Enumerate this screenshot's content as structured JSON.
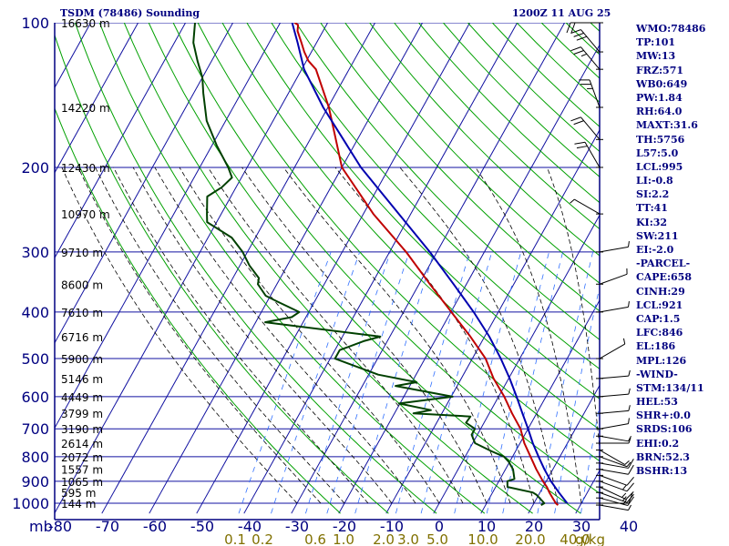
{
  "header": {
    "title": "TSDM (78486) Sounding",
    "datetime": "1200Z 11 AUG 25"
  },
  "indices": [
    "WMO:78486",
    "TP:101",
    "MW:13",
    "FRZ:571",
    "WB0:649",
    "PW:1.84",
    "RH:64.0",
    "MAXT:31.6",
    "TH:5756",
    "L57:5.0",
    "LCL:995",
    "LI:-0.8",
    "SI:2.2",
    "TT:41",
    "KI:32",
    "SW:211",
    "EI:-2.0",
    "-PARCEL-",
    "CAPE:658",
    "CINH:29",
    "LCL:921",
    "CAP:1.5",
    "LFC:846",
    "EL:186",
    "MPL:126",
    "-WIND-",
    "STM:134/11",
    "HEL:53",
    "SHR+:0.0",
    "SRDS:106",
    "EHI:0.2",
    "BRN:52.3",
    "BSHR:13"
  ],
  "colors": {
    "frame": "#000080",
    "isobar": "#1010a0",
    "isotherm": "#1010a0",
    "dry_adiabat": "#00a000",
    "moist_adiabat": "#000000",
    "mixing_ratio": "#3070ff",
    "temperature": "#c00000",
    "dewpoint": "#004000",
    "parcel": "#0000b0",
    "mixing_label": "#807000"
  },
  "chart_data": {
    "type": "line",
    "title": "TSDM (78486) Sounding",
    "subtitle": "1200Z 11 AUG 25",
    "xlabel": "",
    "ylabel": "mb",
    "x_ticks": [
      -80,
      -70,
      -60,
      -50,
      -40,
      -30,
      -20,
      -10,
      0,
      10,
      20,
      30,
      40
    ],
    "y_ticks": [
      100,
      200,
      300,
      400,
      500,
      600,
      700,
      800,
      900,
      1000
    ],
    "ylim": [
      1000,
      100
    ],
    "y_scale": "log",
    "grid": true,
    "height_labels": [
      {
        "p": 100,
        "label": "16630 m"
      },
      {
        "p": 150,
        "label": "14220 m"
      },
      {
        "p": 200,
        "label": "12430 m"
      },
      {
        "p": 250,
        "label": "10970 m"
      },
      {
        "p": 300,
        "label": "9710 m"
      },
      {
        "p": 350,
        "label": "8600 m"
      },
      {
        "p": 400,
        "label": "7610 m"
      },
      {
        "p": 450,
        "label": "6716 m"
      },
      {
        "p": 500,
        "label": "5900 m"
      },
      {
        "p": 550,
        "label": "5146 m"
      },
      {
        "p": 600,
        "label": "4449 m"
      },
      {
        "p": 650,
        "label": "3799 m"
      },
      {
        "p": 700,
        "label": "3190 m"
      },
      {
        "p": 750,
        "label": "2614 m"
      },
      {
        "p": 800,
        "label": "2072 m"
      },
      {
        "p": 850,
        "label": "1557 m"
      },
      {
        "p": 900,
        "label": "1065 m"
      },
      {
        "p": 950,
        "label": "595 m"
      },
      {
        "p": 1000,
        "label": "144 m"
      }
    ],
    "mixing_ratio_labels": [
      "0.1",
      "0.2",
      "0.6",
      "1.0",
      "2.0",
      "3.0",
      "5.0",
      "10.0",
      "20.0",
      "40.0"
    ],
    "mixing_ratio_unit": "g/kg",
    "series": [
      {
        "key": "temperature",
        "pressure": [
          1009,
          1000,
          950,
          925,
          900,
          850,
          800,
          750,
          700,
          650,
          600,
          550,
          500,
          450,
          400,
          350,
          300,
          250,
          200,
          150,
          125,
          120,
          115,
          110,
          104,
          101,
          100
        ],
        "values": [
          25.3,
          24.6,
          22.0,
          20.8,
          19.3,
          16.5,
          13.8,
          10.9,
          8.4,
          4.8,
          1.2,
          -3.2,
          -7.2,
          -13.0,
          -19.9,
          -27.7,
          -36.5,
          -47.9,
          -60.0,
          -69.8,
          -77.0,
          -79.6,
          -81.5,
          -83.2,
          -85.4,
          -86.0,
          -87.0
        ]
      },
      {
        "key": "dewpoint",
        "pressure": [
          1009,
          1000,
          960,
          950,
          925,
          900,
          890,
          850,
          820,
          800,
          780,
          750,
          720,
          700,
          680,
          660,
          650,
          640,
          620,
          600,
          570,
          560,
          540,
          500,
          480,
          460,
          450,
          420,
          410,
          400,
          380,
          370,
          350,
          340,
          320,
          300,
          280,
          260,
          250,
          230,
          220,
          210,
          200,
          180,
          160,
          140,
          130,
          120,
          110,
          100
        ],
        "values": [
          21.7,
          22.2,
          19.5,
          18.5,
          12.5,
          11.8,
          13.0,
          11.6,
          9.8,
          8.2,
          5.0,
          0.5,
          -1.2,
          -1.2,
          -3.8,
          -3.6,
          -16.0,
          -12.7,
          -20.2,
          -9.7,
          -23.0,
          -19.0,
          -28.0,
          -39.0,
          -39.0,
          -35.0,
          -32.0,
          -58.0,
          -53.0,
          -52.0,
          -58.0,
          -61.0,
          -64.0,
          -64.5,
          -68.0,
          -71.0,
          -75.0,
          -82.0,
          -83.0,
          -85.0,
          -83.0,
          -82.0,
          -84.0,
          -89.0,
          -94.0,
          -98.0,
          -100.0,
          -103.0,
          -106.0,
          -108.0
        ]
      },
      {
        "key": "parcel",
        "pressure": [
          1000,
          950,
          900,
          850,
          800,
          750,
          700,
          650,
          600,
          550,
          500,
          450,
          400,
          350,
          300,
          250,
          200,
          150,
          125,
          110,
          100
        ],
        "values": [
          27.0,
          24.0,
          21.0,
          18.2,
          15.5,
          12.7,
          10.0,
          7.0,
          3.8,
          0.2,
          -4.0,
          -9.0,
          -15.2,
          -22.7,
          -31.5,
          -42.5,
          -56.0,
          -71.0,
          -79.5,
          -84.0,
          -87.5
        ]
      }
    ]
  },
  "wind_barbs": [
    {
      "p": 1009,
      "dir": 100,
      "spd": 5
    },
    {
      "p": 1000,
      "dir": 90,
      "spd": 10
    },
    {
      "p": 975,
      "dir": 105,
      "spd": 15
    },
    {
      "p": 950,
      "dir": 110,
      "spd": 15
    },
    {
      "p": 925,
      "dir": 115,
      "spd": 15
    },
    {
      "p": 900,
      "dir": 110,
      "spd": 15
    },
    {
      "p": 875,
      "dir": 110,
      "spd": 10
    },
    {
      "p": 850,
      "dir": 100,
      "spd": 10
    },
    {
      "p": 825,
      "dir": 100,
      "spd": 10
    },
    {
      "p": 800,
      "dir": 110,
      "spd": 5
    },
    {
      "p": 775,
      "dir": 120,
      "spd": 5
    },
    {
      "p": 750,
      "dir": 90,
      "spd": 5
    },
    {
      "p": 725,
      "dir": 100,
      "spd": 5
    },
    {
      "p": 700,
      "dir": 80,
      "spd": 5
    },
    {
      "p": 650,
      "dir": 85,
      "spd": 5
    },
    {
      "p": 600,
      "dir": 85,
      "spd": 5
    },
    {
      "p": 550,
      "dir": 85,
      "spd": 5
    },
    {
      "p": 500,
      "dir": 60,
      "spd": 5
    },
    {
      "p": 400,
      "dir": 80,
      "spd": 5
    },
    {
      "p": 350,
      "dir": 70,
      "spd": 5
    },
    {
      "p": 300,
      "dir": 80,
      "spd": 5
    },
    {
      "p": 250,
      "dir": 300,
      "spd": 5
    },
    {
      "p": 200,
      "dir": 330,
      "spd": 20
    },
    {
      "p": 175,
      "dir": 320,
      "spd": 20
    },
    {
      "p": 150,
      "dir": 340,
      "spd": 25
    },
    {
      "p": 125,
      "dir": 320,
      "spd": 25
    },
    {
      "p": 115,
      "dir": 320,
      "spd": 30
    },
    {
      "p": 100,
      "dir": 270,
      "spd": 20
    }
  ]
}
